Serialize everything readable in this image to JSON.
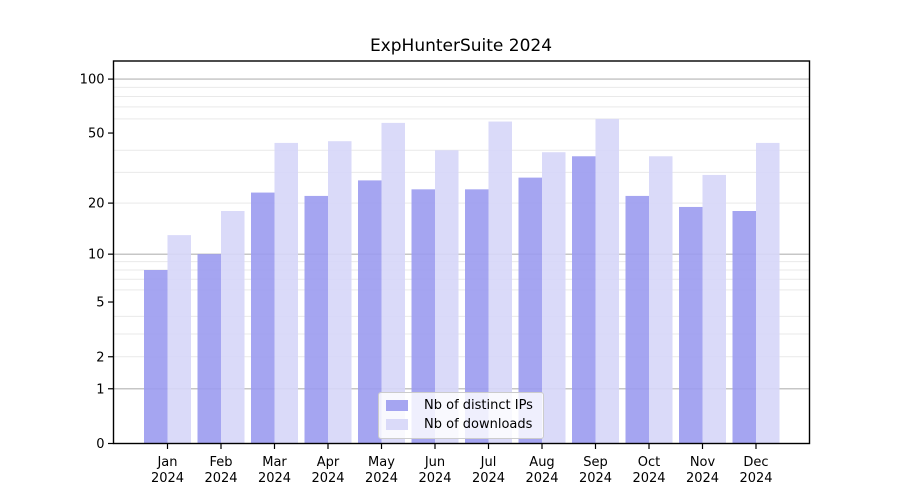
{
  "figure": {
    "background": "#ffffff"
  },
  "chart_data": {
    "type": "bar",
    "title": "ExpHunterSuite 2024",
    "categories": [
      "Jan 2024",
      "Feb 2024",
      "Mar 2024",
      "Apr 2024",
      "May 2024",
      "Jun 2024",
      "Jul 2024",
      "Aug 2024",
      "Sep 2024",
      "Oct 2024",
      "Nov 2024",
      "Dec 2024"
    ],
    "series": [
      {
        "name": "Nb of distinct IPs",
        "color": "#9b9bf0",
        "values": [
          8,
          10,
          23,
          22,
          27,
          24,
          24,
          28,
          37,
          22,
          19,
          18
        ]
      },
      {
        "name": "Nb of downloads",
        "color": "#d6d6f8",
        "values": [
          13,
          18,
          44,
          45,
          57,
          40,
          58,
          39,
          60,
          37,
          29,
          44
        ]
      }
    ],
    "xlabel": "",
    "ylabel": "",
    "yscale": "log1p",
    "ylim": [
      0,
      126
    ],
    "yticks": [
      0,
      1,
      2,
      5,
      10,
      20,
      50,
      100
    ],
    "major_gridlines": [
      1,
      10,
      100
    ],
    "minor_gridlines": [
      2,
      3,
      4,
      6,
      7,
      8,
      9,
      20,
      30,
      40,
      60,
      70,
      80,
      90
    ],
    "grid": true,
    "legend_position": "lower center"
  },
  "colors": {
    "major_grid": "#b4b4b4",
    "minor_grid": "#e9e9e9",
    "axis": "#000000",
    "legend_border": "#cccccc"
  }
}
